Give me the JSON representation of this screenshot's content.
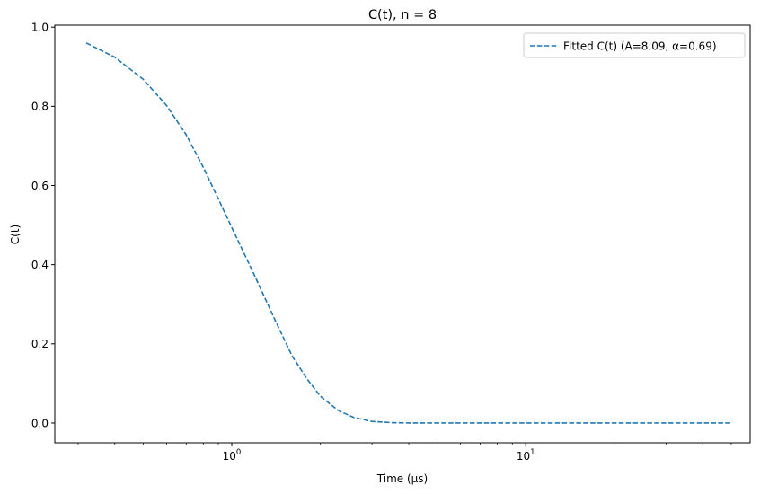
{
  "chart_data": {
    "type": "line",
    "title": "C(t), n = 8",
    "xlabel": "Time (μs)",
    "ylabel": "C(t)",
    "xscale": "log",
    "xlim": [
      0.25,
      58
    ],
    "ylim": [
      -0.05,
      1.005
    ],
    "grid": false,
    "legend_position": "top-right",
    "x_ticks": [
      {
        "value": 1,
        "base": "10",
        "exp": "0"
      },
      {
        "value": 10,
        "base": "10",
        "exp": "1"
      }
    ],
    "y_ticks": [
      {
        "value": 0.0,
        "label": "0.0"
      },
      {
        "value": 0.2,
        "label": "0.2"
      },
      {
        "value": 0.4,
        "label": "0.4"
      },
      {
        "value": 0.6,
        "label": "0.6"
      },
      {
        "value": 0.8,
        "label": "0.8"
      },
      {
        "value": 1.0,
        "label": "1.0"
      }
    ],
    "series": [
      {
        "name": "Fitted C(t) (A=8.09, α=0.69)",
        "color": "#1f77b4",
        "linestyle": "dashed",
        "x": [
          0.32,
          0.4,
          0.5,
          0.6,
          0.7,
          0.8,
          0.9,
          1.0,
          1.2,
          1.4,
          1.6,
          1.8,
          2.0,
          2.3,
          2.6,
          3.0,
          3.5,
          4.0,
          5.0,
          7.0,
          10,
          20,
          50
        ],
        "y": [
          0.96,
          0.924,
          0.868,
          0.802,
          0.728,
          0.646,
          0.566,
          0.494,
          0.37,
          0.262,
          0.171,
          0.112,
          0.068,
          0.032,
          0.014,
          0.004,
          0.001,
          0.0,
          0.0,
          0.0,
          0.0,
          0.0,
          0.0
        ]
      }
    ]
  }
}
